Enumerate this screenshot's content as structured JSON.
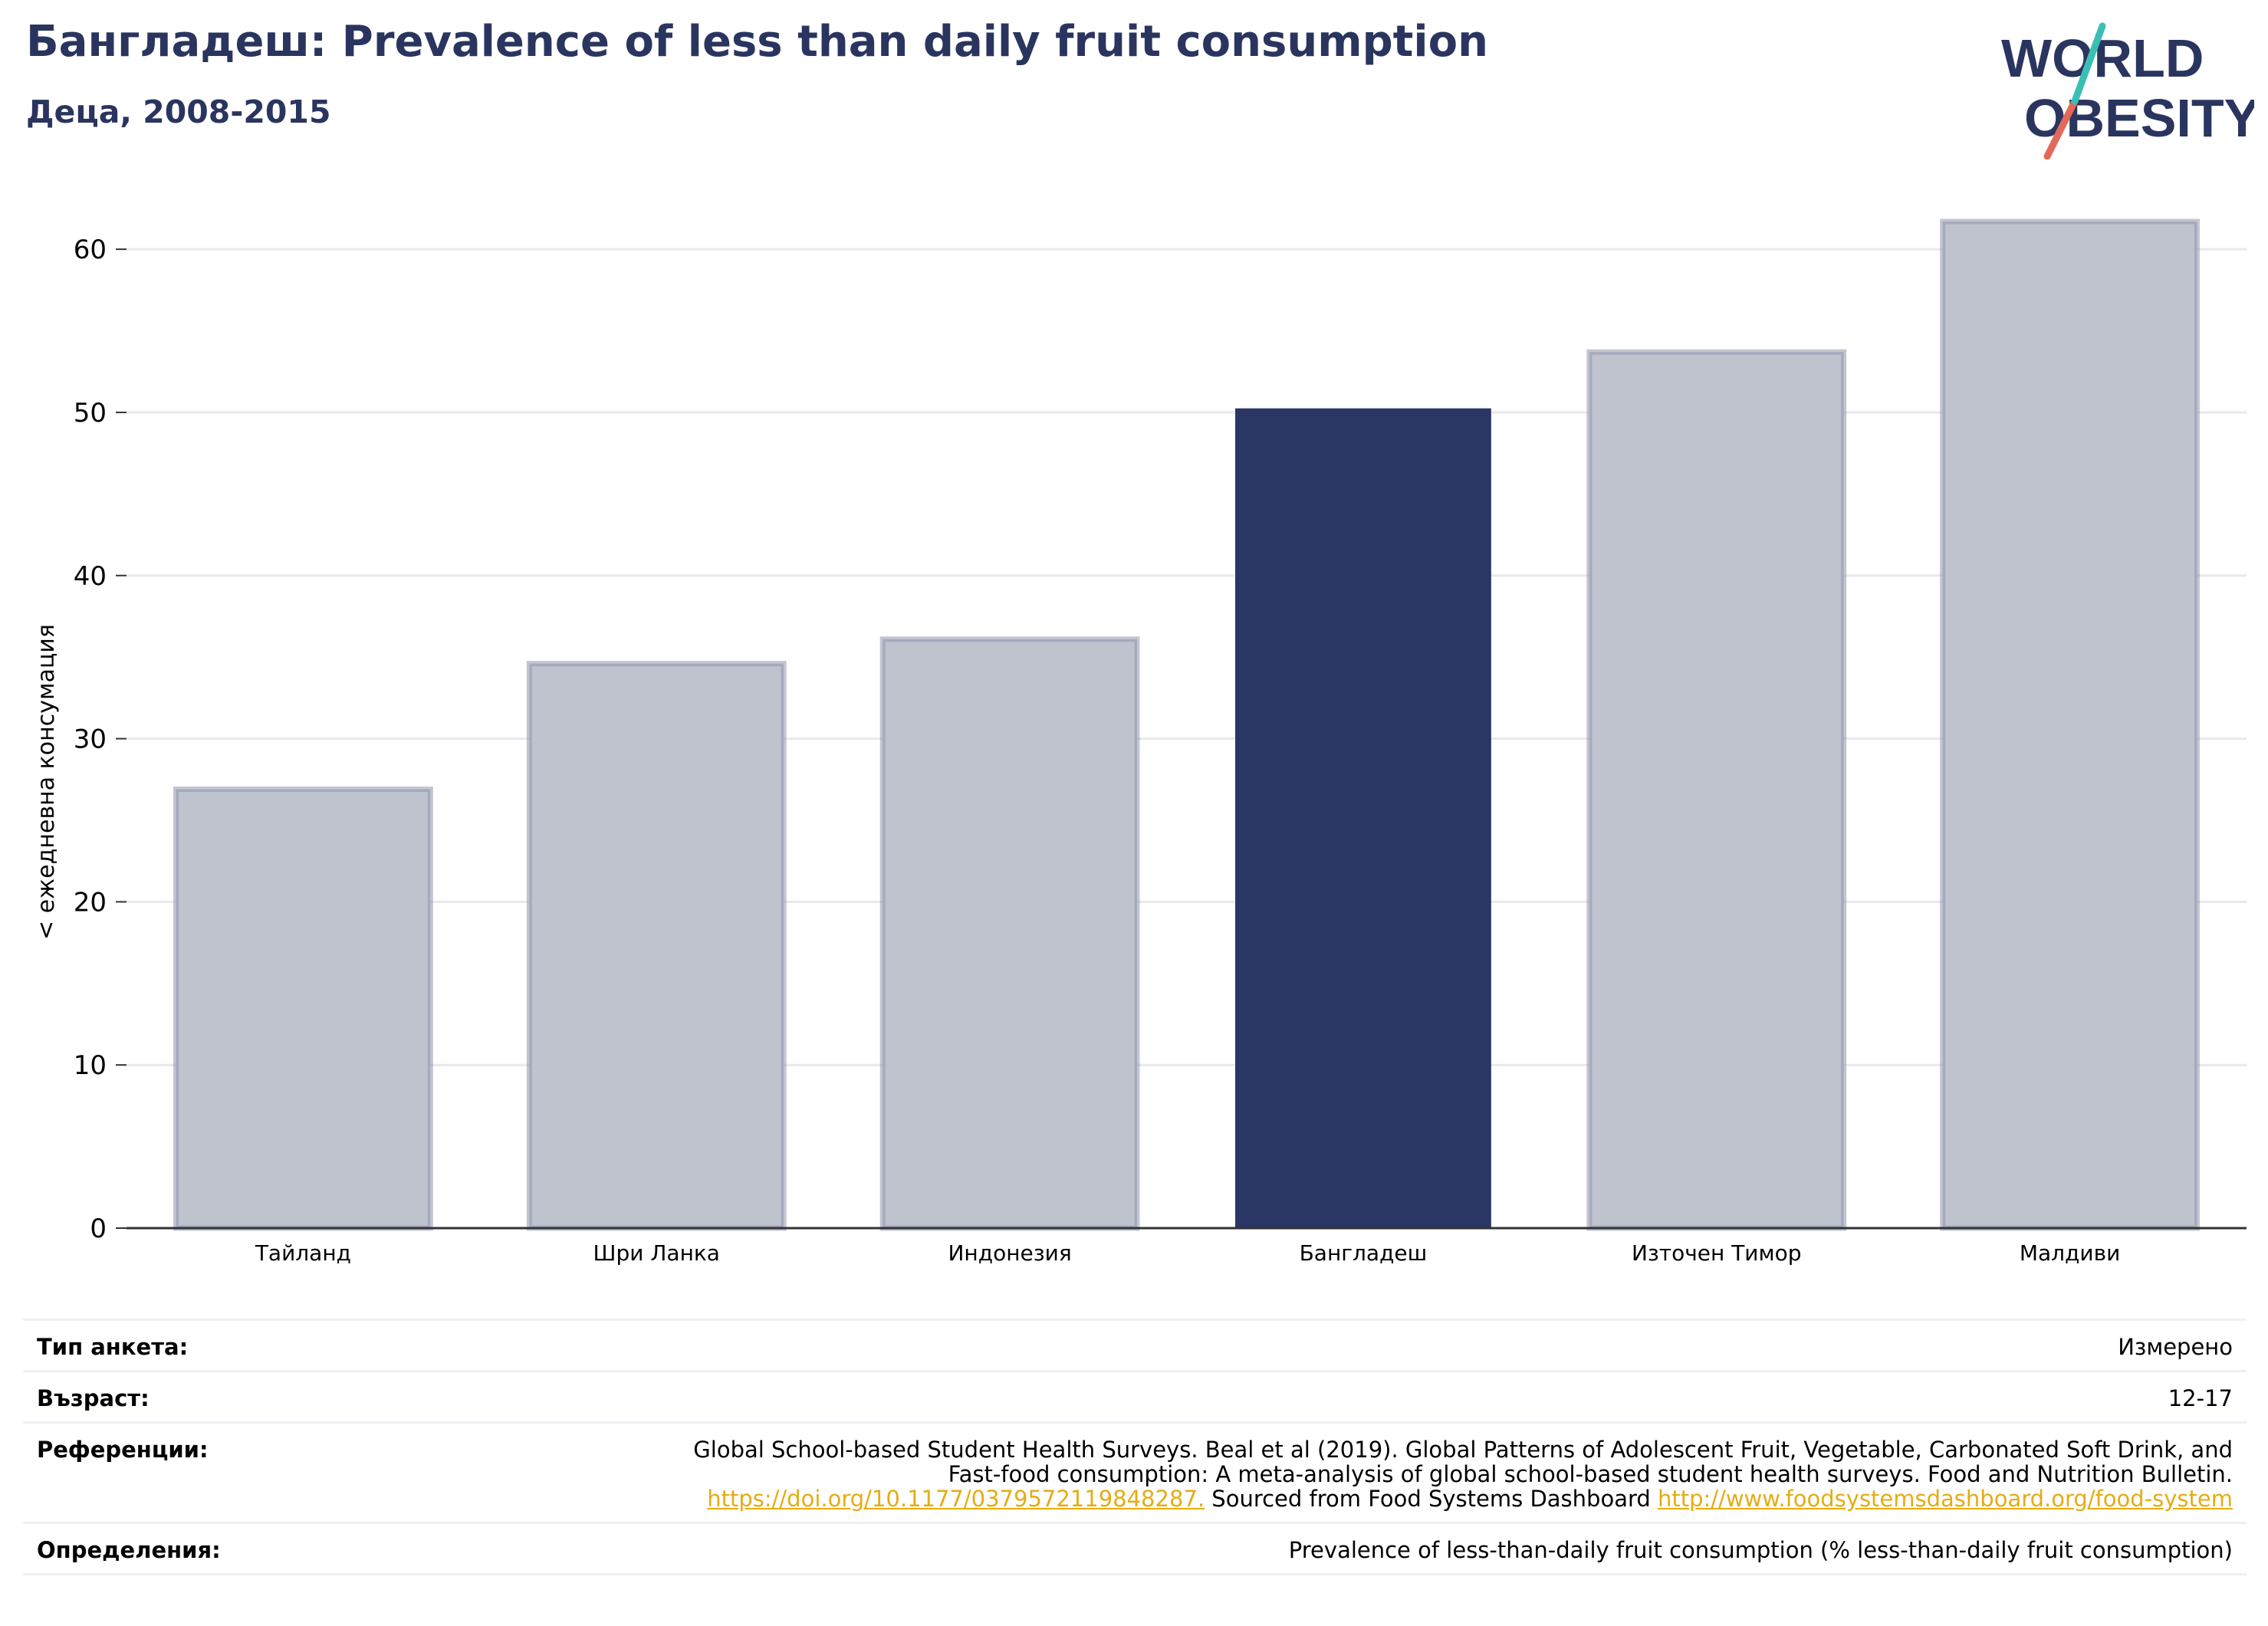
{
  "header": {
    "title": "Бангладеш: Prevalence of less than daily fruit consumption",
    "subtitle": "Деца, 2008-2015",
    "logo_text": "WORLD OBESITY"
  },
  "chart_data": {
    "type": "bar",
    "categories": [
      "Тайланд",
      "Шри Ланка",
      "Индонезия",
      "Бангладеш",
      "Източен Тимор",
      "Малдиви"
    ],
    "values": [
      26.9,
      34.6,
      36.1,
      50.2,
      53.7,
      61.7
    ],
    "highlight": "Бангладеш",
    "ylabel": "< ежедневна консумация",
    "xlabel": "",
    "ylim": [
      0,
      64
    ],
    "yticks": [
      0,
      10,
      20,
      30,
      40,
      50,
      60
    ],
    "grid": true,
    "colors": {
      "highlight": "#2a3663",
      "other": "#bfc3ce",
      "other_border": "#8f96ad",
      "grid": "#e8e8ee",
      "axis": "#333333"
    }
  },
  "meta": {
    "survey_type_label": "Тип анкета:",
    "survey_type_value": "Измерено",
    "age_label": "Възраст:",
    "age_value": "12-17",
    "references_label": "Референции:",
    "references_text_1": "Global School-based Student Health Surveys. Beal et al (2019). Global Patterns of Adolescent Fruit, Vegetable, Carbonated Soft Drink, and",
    "references_text_2": "Fast-food consumption: A meta-analysis of global school-based student health surveys. Food and Nutrition Bulletin.",
    "references_link_1": "https://doi.org/10.1177/0379572119848287.",
    "references_text_3": " Sourced from Food Systems Dashboard ",
    "references_link_2": "http://www.foodsystemsdashboard.org/food-system",
    "definitions_label": "Определения:",
    "definitions_value": "Prevalence of less-than-daily fruit consumption (% less-than-daily fruit consumption)"
  }
}
